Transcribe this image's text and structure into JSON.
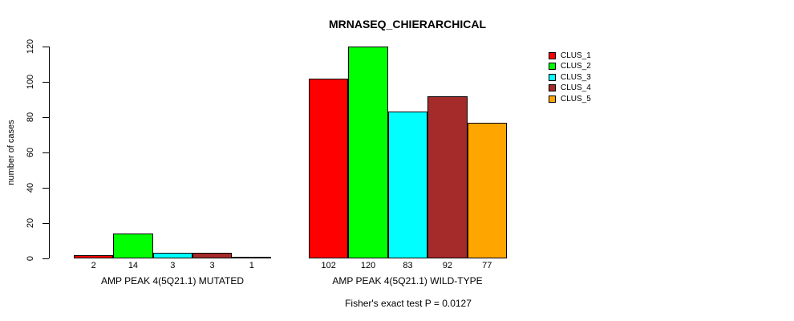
{
  "chart_data": {
    "type": "bar",
    "title": "MRNASEQ_CHIERARCHICAL",
    "ylabel": "number of cases",
    "xlabel": "",
    "ylim": [
      0,
      120
    ],
    "yticks": [
      0,
      20,
      40,
      60,
      80,
      100,
      120
    ],
    "grid": false,
    "legend_position": "top-right",
    "bar_value_labels_shown": true,
    "categories": [
      "AMP PEAK 4(5Q21.1) MUTATED",
      "AMP PEAK 4(5Q21.1) WILD-TYPE"
    ],
    "series": [
      {
        "name": "CLUS_1",
        "color": "#ff0000",
        "values": [
          2,
          102
        ]
      },
      {
        "name": "CLUS_2",
        "color": "#00ff00",
        "values": [
          14,
          120
        ]
      },
      {
        "name": "CLUS_3",
        "color": "#00ffff",
        "values": [
          3,
          83
        ]
      },
      {
        "name": "CLUS_4",
        "color": "#a52a2a",
        "values": [
          3,
          92
        ]
      },
      {
        "name": "CLUS_5",
        "color": "#ffa500",
        "values": [
          1,
          77
        ]
      }
    ],
    "annotation": "Fisher's exact test P = 0.0127",
    "axis_color": "#000000",
    "bar_border_color": "#000000"
  }
}
